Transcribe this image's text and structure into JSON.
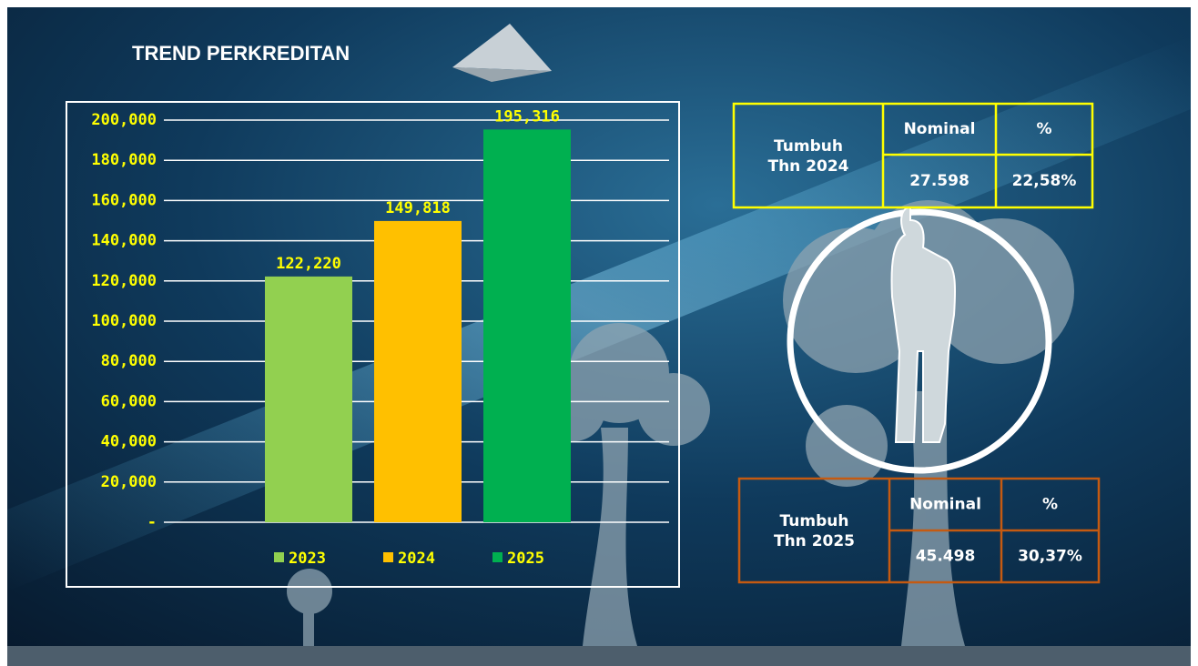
{
  "chart_data": {
    "type": "bar",
    "title": "TREND PERKREDITAN",
    "series": [
      {
        "name": "2023",
        "color": "#92d050",
        "values": [
          122220
        ],
        "value_labels": [
          "122,220"
        ]
      },
      {
        "name": "2024",
        "color": "#ffc000",
        "values": [
          149818
        ],
        "value_labels": [
          "149,818"
        ]
      },
      {
        "name": "2025",
        "color": "#00b050",
        "values": [
          195316
        ],
        "value_labels": [
          "195,316"
        ]
      }
    ],
    "ylim": [
      0,
      200000
    ],
    "yticks": [
      {
        "value": 0,
        "label": "-"
      },
      {
        "value": 20000,
        "label": "20,000"
      },
      {
        "value": 40000,
        "label": "40,000"
      },
      {
        "value": 60000,
        "label": "60,000"
      },
      {
        "value": 80000,
        "label": "80,000"
      },
      {
        "value": 100000,
        "label": "100,000"
      },
      {
        "value": 120000,
        "label": "120,000"
      },
      {
        "value": 140000,
        "label": "140,000"
      },
      {
        "value": 160000,
        "label": "160,000"
      },
      {
        "value": 180000,
        "label": "180,000"
      },
      {
        "value": 200000,
        "label": "200,000"
      }
    ],
    "grid": true,
    "legend": "bottom"
  },
  "tables": [
    {
      "label_lines": [
        "Tumbuh",
        "Thn 2024"
      ],
      "columns": [
        "Nominal",
        "%"
      ],
      "values": [
        "27.598",
        "22,58%"
      ],
      "color": "#ffff00"
    },
    {
      "label_lines": [
        "Tumbuh",
        "Thn 2025"
      ],
      "columns": [
        "Nominal",
        "%"
      ],
      "values": [
        "45.498",
        "30,37%"
      ],
      "color": "#c55a11"
    }
  ]
}
